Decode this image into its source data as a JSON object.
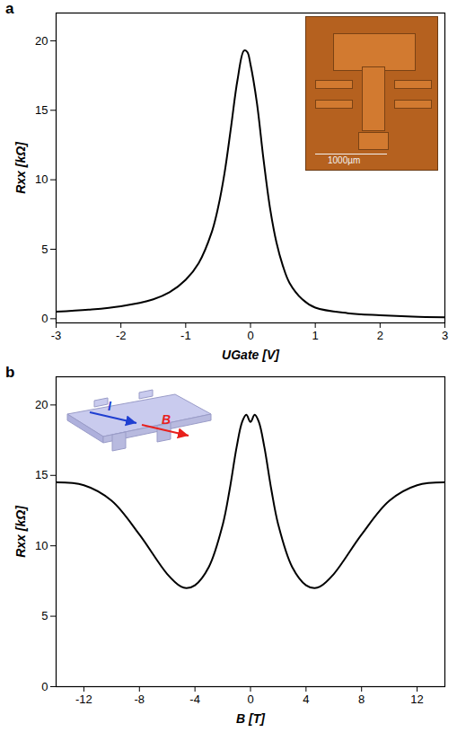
{
  "chart_data": [
    {
      "type": "line",
      "panel": "a",
      "xlabel": "UGate [V]",
      "ylabel": "Rxx [kΩ]",
      "x": [
        -3,
        -2.5,
        -2,
        -1.5,
        -1.25,
        -1,
        -0.8,
        -0.6,
        -0.5,
        -0.4,
        -0.3,
        -0.2,
        -0.1,
        -0.05,
        0,
        0.1,
        0.2,
        0.3,
        0.4,
        0.5,
        0.6,
        0.8,
        1,
        1.5,
        2,
        2.5,
        3
      ],
      "series": [
        {
          "name": "Rxx",
          "color": "#000000",
          "values": [
            0.5,
            0.65,
            0.9,
            1.4,
            1.9,
            2.8,
            4.0,
            6.2,
            8.0,
            10.5,
            13.8,
            17.2,
            19.3,
            19.2,
            18.3,
            15.5,
            11.5,
            8.0,
            5.5,
            3.8,
            2.6,
            1.4,
            0.8,
            0.4,
            0.25,
            0.15,
            0.1
          ]
        }
      ],
      "xlim": [
        -3,
        3
      ],
      "xticks": [
        -3,
        -2,
        -1,
        0,
        1,
        2,
        3
      ],
      "ylim": [
        -0.3,
        22
      ],
      "yticks": [
        0,
        5,
        10,
        15,
        20
      ],
      "annotations": [
        "1000µm"
      ]
    },
    {
      "type": "line",
      "panel": "b",
      "xlabel": "B [T]",
      "ylabel": "Rxx [kΩ]",
      "x": [
        -14,
        -12,
        -10,
        -8,
        -6,
        -5,
        -4.6,
        -4,
        -3,
        -2,
        -1.5,
        -1,
        -0.6,
        -0.3,
        0,
        0.3,
        0.6,
        1,
        1.5,
        2,
        3,
        4,
        4.6,
        5,
        6,
        8,
        10,
        12,
        14
      ],
      "series": [
        {
          "name": "Rxx",
          "color": "#000000",
          "values": [
            14.5,
            14.3,
            13.2,
            10.8,
            8.0,
            7.1,
            7.0,
            7.2,
            8.5,
            11.5,
            14.0,
            17.0,
            18.8,
            19.3,
            18.8,
            19.3,
            18.8,
            17.0,
            14.0,
            11.5,
            8.5,
            7.2,
            7.0,
            7.1,
            8.0,
            10.8,
            13.2,
            14.3,
            14.5
          ]
        }
      ],
      "xlim": [
        -14,
        14
      ],
      "xticks": [
        -12,
        -8,
        -4,
        0,
        4,
        8,
        12
      ],
      "ylim": [
        0,
        22
      ],
      "yticks": [
        0,
        5,
        10,
        15,
        20
      ],
      "annotations": [
        "I",
        "B"
      ]
    }
  ]
}
